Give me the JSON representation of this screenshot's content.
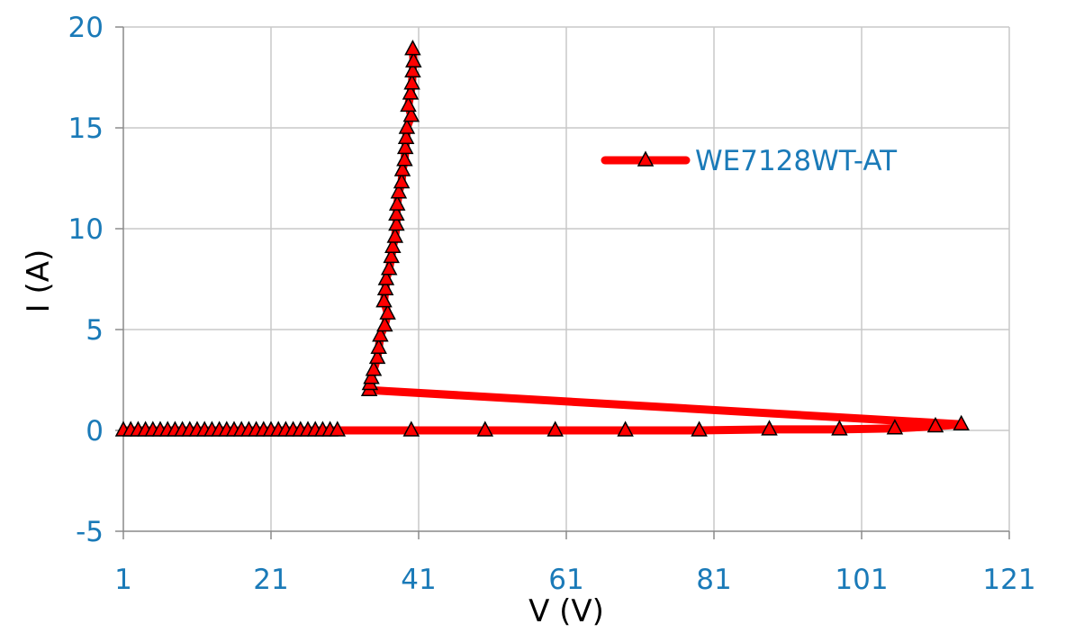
{
  "chart_data": {
    "type": "scatter",
    "xlabel": "V (V)",
    "ylabel": "I (A)",
    "xlim": [
      1,
      121
    ],
    "ylim": [
      -5,
      20
    ],
    "x_ticks": [
      1,
      21,
      41,
      61,
      81,
      101,
      121
    ],
    "y_ticks": [
      -5,
      0,
      5,
      10,
      15,
      20
    ],
    "x_tick_labels": [
      "1",
      "21",
      "41",
      "61",
      "81",
      "101",
      "121"
    ],
    "y_tick_labels": [
      "-5",
      "0",
      "5",
      "10",
      "15",
      "20"
    ],
    "grid": true,
    "legend": "right, upper middle",
    "series": [
      {
        "name": "WE7128WT-AT",
        "color": "#ff0000",
        "marker": "triangle",
        "marker_edge": "#000000",
        "points": [
          {
            "x": 1,
            "y": 0
          },
          {
            "x": 2,
            "y": 0
          },
          {
            "x": 3,
            "y": 0
          },
          {
            "x": 4,
            "y": 0
          },
          {
            "x": 5,
            "y": 0
          },
          {
            "x": 6,
            "y": 0
          },
          {
            "x": 7,
            "y": 0
          },
          {
            "x": 8,
            "y": 0
          },
          {
            "x": 9,
            "y": 0
          },
          {
            "x": 10,
            "y": 0
          },
          {
            "x": 11,
            "y": 0
          },
          {
            "x": 12,
            "y": 0
          },
          {
            "x": 13,
            "y": 0
          },
          {
            "x": 14,
            "y": 0
          },
          {
            "x": 15,
            "y": 0
          },
          {
            "x": 16,
            "y": 0
          },
          {
            "x": 17,
            "y": 0
          },
          {
            "x": 18,
            "y": 0
          },
          {
            "x": 19,
            "y": 0
          },
          {
            "x": 20,
            "y": 0
          },
          {
            "x": 21,
            "y": 0
          },
          {
            "x": 22,
            "y": 0
          },
          {
            "x": 23,
            "y": 0
          },
          {
            "x": 24,
            "y": 0
          },
          {
            "x": 25,
            "y": 0
          },
          {
            "x": 26,
            "y": 0
          },
          {
            "x": 27,
            "y": 0
          },
          {
            "x": 28,
            "y": 0
          },
          {
            "x": 29,
            "y": 0
          },
          {
            "x": 30,
            "y": 0
          },
          {
            "x": 40,
            "y": 0
          },
          {
            "x": 50,
            "y": 0
          },
          {
            "x": 59.5,
            "y": 0
          },
          {
            "x": 69,
            "y": 0
          },
          {
            "x": 79,
            "y": 0
          },
          {
            "x": 88.5,
            "y": 0.05
          },
          {
            "x": 98,
            "y": 0.05
          },
          {
            "x": 105.5,
            "y": 0.1
          },
          {
            "x": 111,
            "y": 0.2
          },
          {
            "x": 114.5,
            "y": 0.3
          },
          {
            "x": 34.3,
            "y": 2.0
          },
          {
            "x": 34.4,
            "y": 2.3
          },
          {
            "x": 34.6,
            "y": 2.6
          },
          {
            "x": 34.9,
            "y": 3.0
          },
          {
            "x": 35.4,
            "y": 3.6
          },
          {
            "x": 35.6,
            "y": 4.1
          },
          {
            "x": 35.8,
            "y": 4.7
          },
          {
            "x": 36.4,
            "y": 5.2
          },
          {
            "x": 36.8,
            "y": 5.8
          },
          {
            "x": 36.3,
            "y": 6.4
          },
          {
            "x": 36.5,
            "y": 7.0
          },
          {
            "x": 36.6,
            "y": 7.5
          },
          {
            "x": 37.0,
            "y": 8.0
          },
          {
            "x": 37.3,
            "y": 8.6
          },
          {
            "x": 37.5,
            "y": 9.1
          },
          {
            "x": 37.8,
            "y": 9.6
          },
          {
            "x": 38.0,
            "y": 10.2
          },
          {
            "x": 38.0,
            "y": 10.7
          },
          {
            "x": 38.1,
            "y": 11.2
          },
          {
            "x": 38.3,
            "y": 11.8
          },
          {
            "x": 38.7,
            "y": 12.3
          },
          {
            "x": 38.8,
            "y": 12.9
          },
          {
            "x": 39.1,
            "y": 13.4
          },
          {
            "x": 39.2,
            "y": 14.0
          },
          {
            "x": 39.3,
            "y": 14.5
          },
          {
            "x": 39.4,
            "y": 15.0
          },
          {
            "x": 40.0,
            "y": 15.6
          },
          {
            "x": 39.6,
            "y": 16.1
          },
          {
            "x": 39.9,
            "y": 16.7
          },
          {
            "x": 40.1,
            "y": 17.2
          },
          {
            "x": 40.2,
            "y": 17.8
          },
          {
            "x": 40.3,
            "y": 18.3
          },
          {
            "x": 40.2,
            "y": 18.9
          }
        ]
      }
    ]
  }
}
